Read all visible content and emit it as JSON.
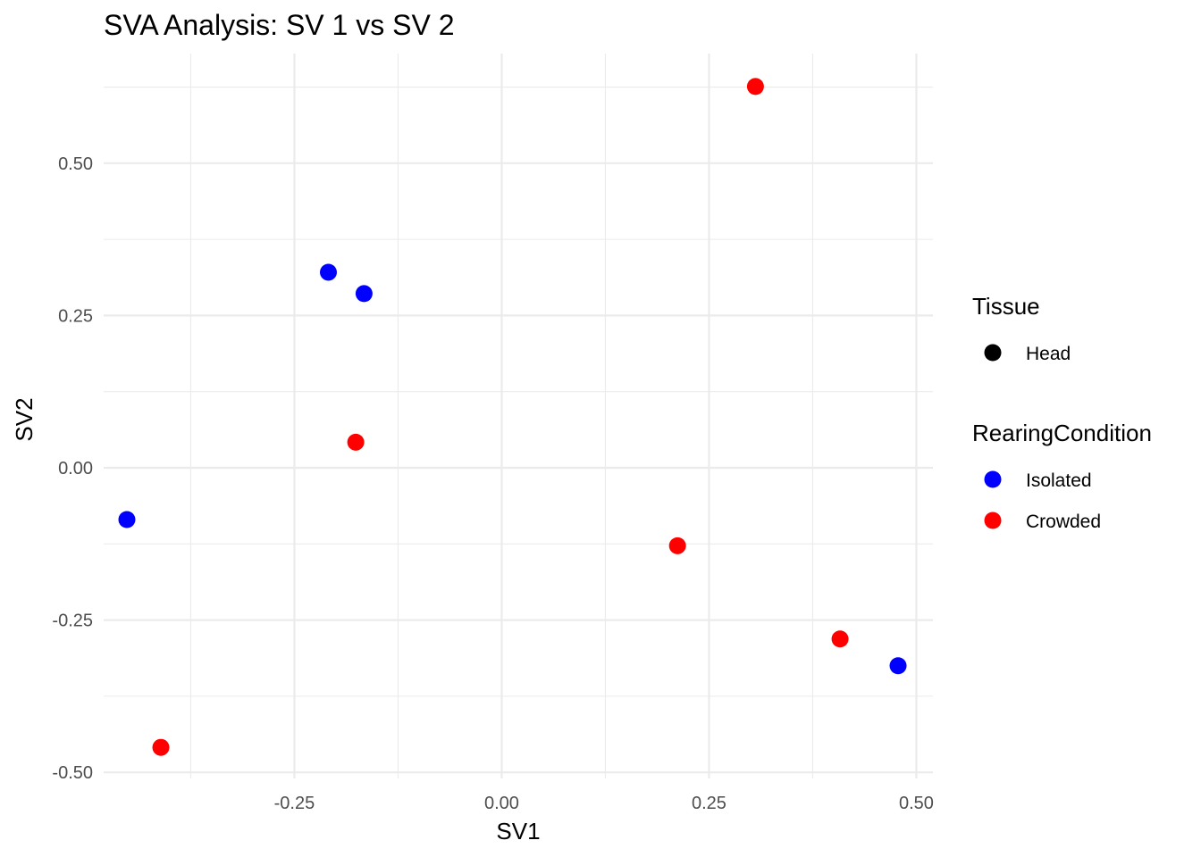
{
  "chart_data": {
    "type": "scatter",
    "title": "SVA Analysis: SV 1  vs SV 2",
    "xlabel": "SV1",
    "ylabel": "SV2",
    "xlim": [
      -0.48,
      0.52
    ],
    "ylim": [
      -0.51,
      0.68
    ],
    "x_ticks": [
      -0.25,
      0,
      0.25,
      0.5
    ],
    "x_tick_labels": [
      "-0.25",
      "0.00",
      "0.25",
      "0.50"
    ],
    "y_ticks": [
      -0.5,
      -0.25,
      0,
      0.25,
      0.5
    ],
    "y_tick_labels": [
      "-0.50",
      "-0.25",
      "0.00",
      "0.25",
      "0.50"
    ],
    "grid": true,
    "legend_position": "right",
    "legends": [
      {
        "title": "Tissue",
        "entries": [
          {
            "label": "Head",
            "color": "#000000"
          }
        ]
      },
      {
        "title": "RearingCondition",
        "entries": [
          {
            "label": "Isolated",
            "color": "#0000ff"
          },
          {
            "label": "Crowded",
            "color": "#ff0000"
          }
        ]
      }
    ],
    "series": [
      {
        "name": "Isolated",
        "color": "#0000ff",
        "points": [
          {
            "x": -0.452,
            "y": -0.085
          },
          {
            "x": -0.209,
            "y": 0.321
          },
          {
            "x": -0.166,
            "y": 0.286
          },
          {
            "x": 0.478,
            "y": -0.325
          }
        ]
      },
      {
        "name": "Crowded",
        "color": "#ff0000",
        "points": [
          {
            "x": -0.411,
            "y": -0.459
          },
          {
            "x": -0.176,
            "y": 0.042
          },
          {
            "x": 0.212,
            "y": -0.128
          },
          {
            "x": 0.306,
            "y": 0.626
          },
          {
            "x": 0.408,
            "y": -0.281
          }
        ]
      }
    ]
  }
}
